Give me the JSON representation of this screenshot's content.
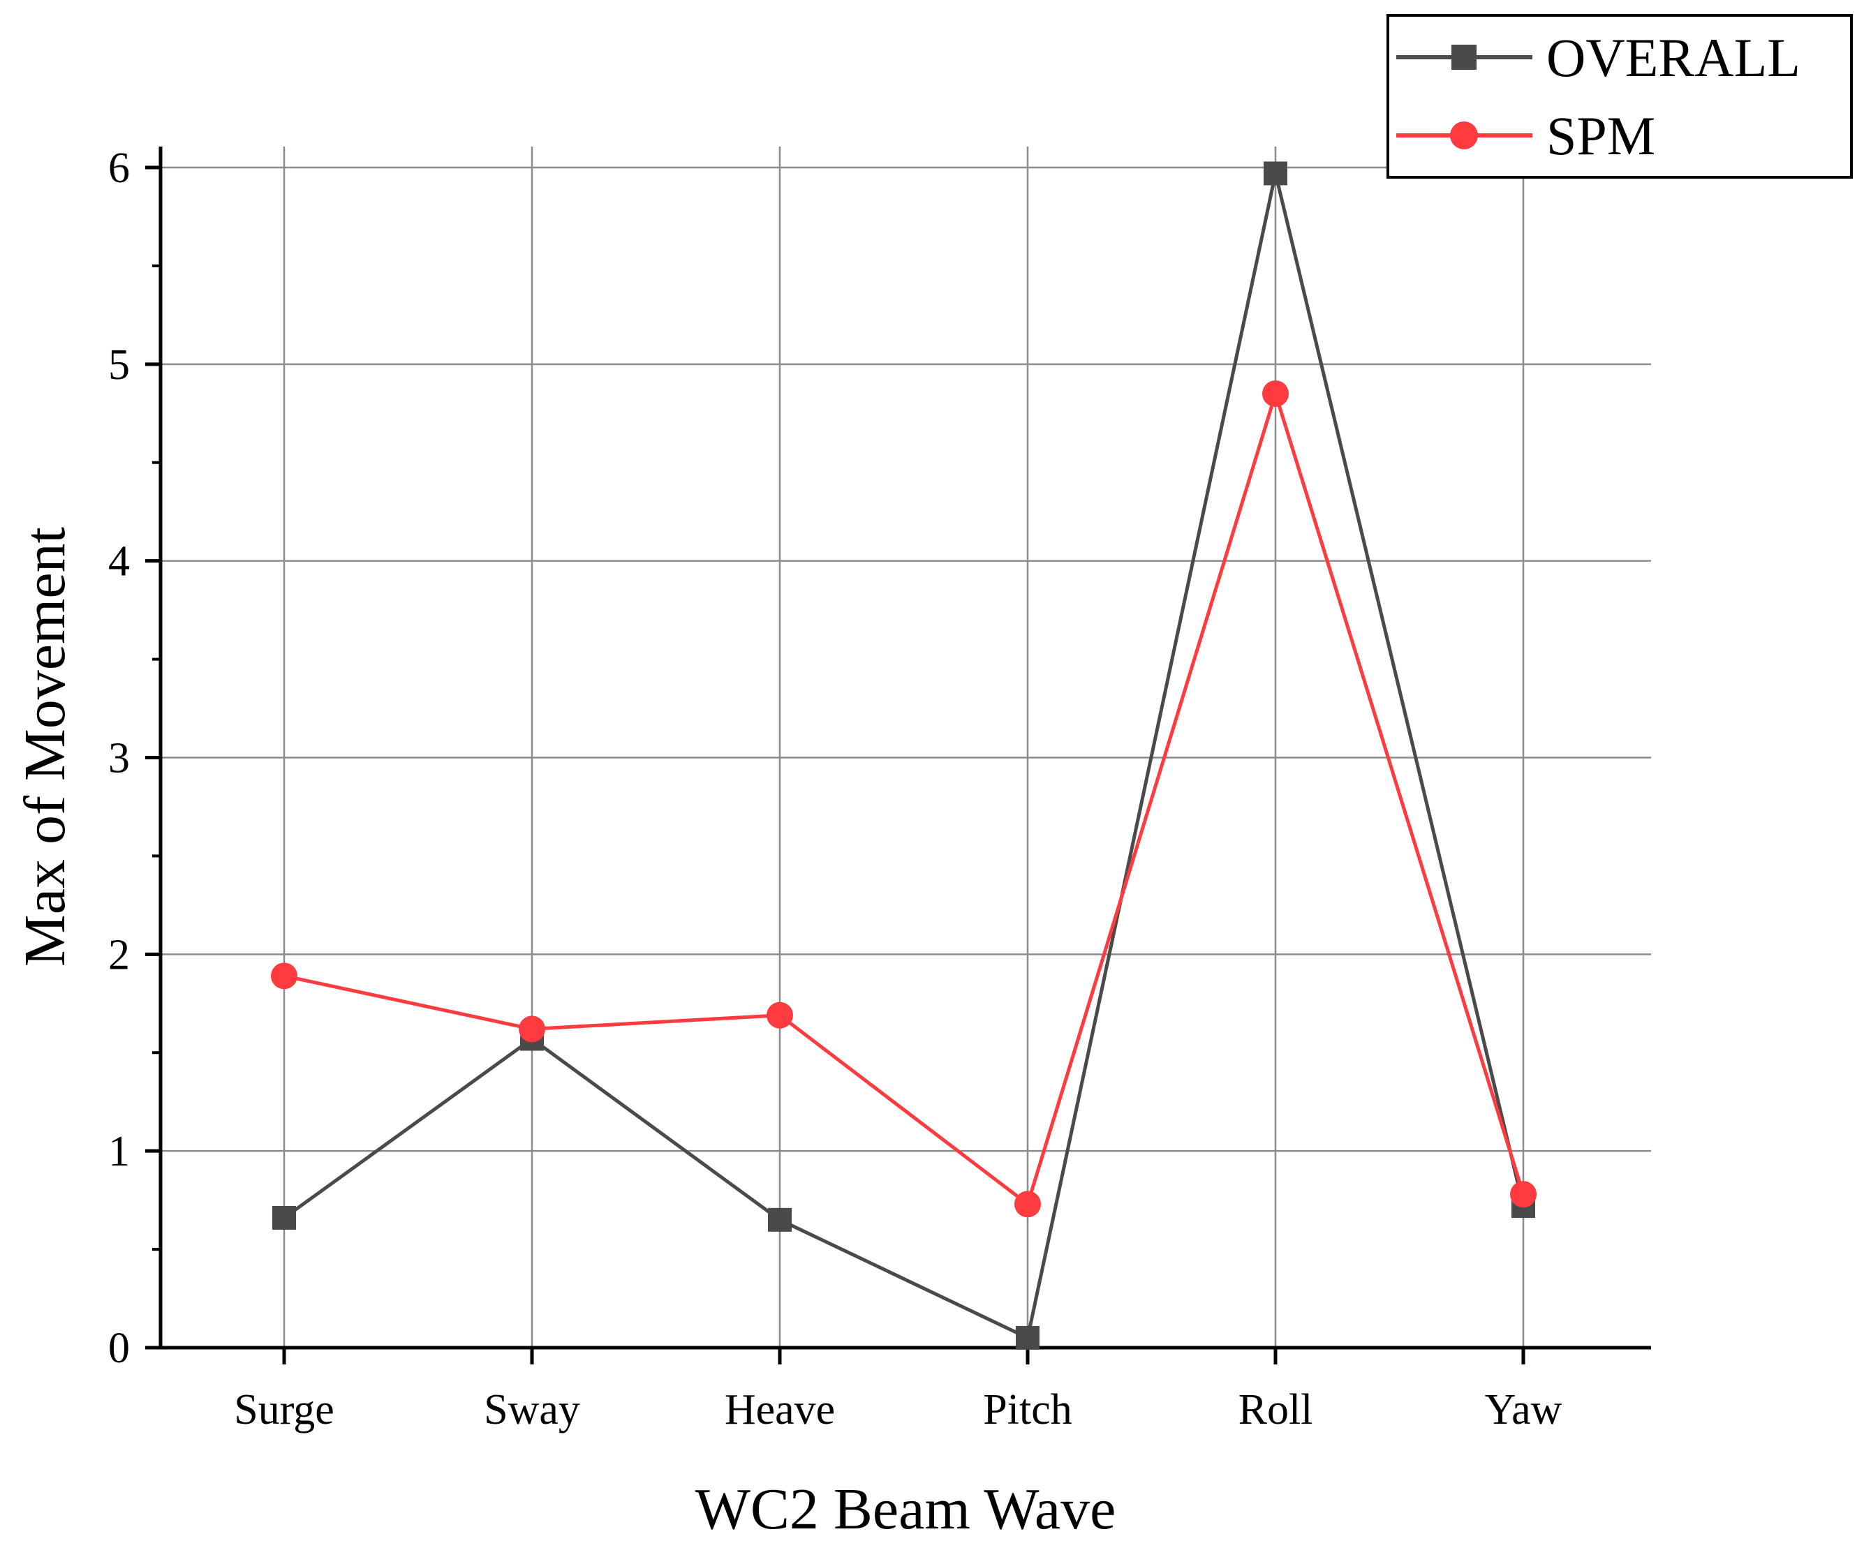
{
  "chart_data": {
    "type": "line",
    "title": "",
    "xlabel": "WC2 Beam Wave",
    "ylabel": "Max of Movement",
    "categories": [
      "Surge",
      "Sway",
      "Heave",
      "Pitch",
      "Roll",
      "Yaw"
    ],
    "ylim": [
      0,
      6
    ],
    "yticks": [
      "0",
      "1",
      "2",
      "3",
      "4",
      "5",
      "6"
    ],
    "grid": true,
    "legend": "top-right",
    "series": [
      {
        "name": "OVERALL",
        "color": "#4a4a4a",
        "marker": "square",
        "values": [
          0.66,
          1.57,
          0.65,
          0.05,
          5.97,
          0.72
        ]
      },
      {
        "name": "SPM",
        "color": "#ff3b3f",
        "marker": "circle",
        "values": [
          1.89,
          1.62,
          1.69,
          0.73,
          4.85,
          0.78
        ]
      }
    ]
  }
}
